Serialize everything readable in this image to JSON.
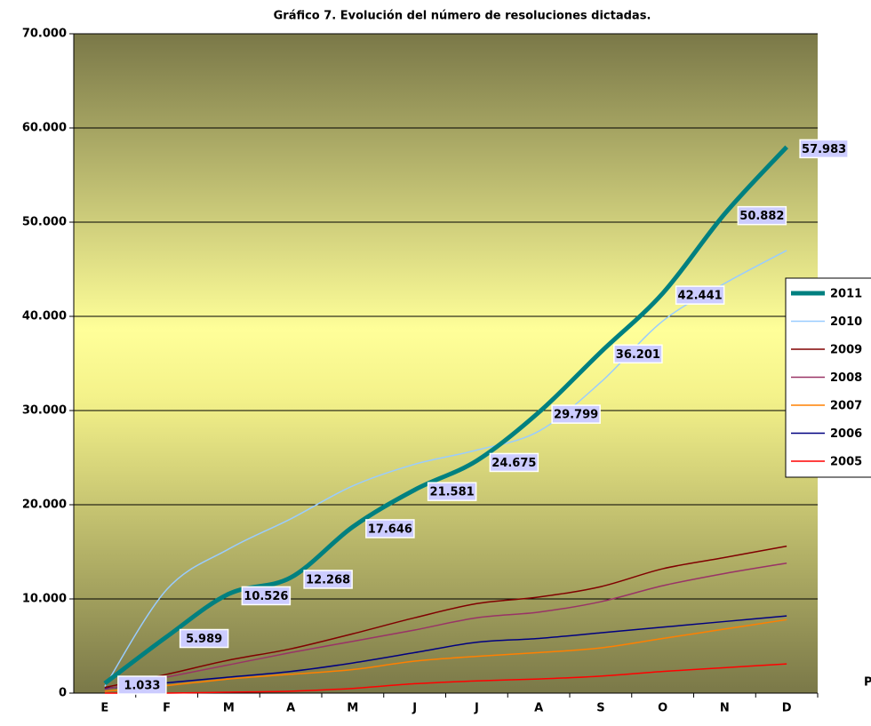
{
  "chart_data": {
    "type": "line",
    "title": "Gráfico 7. Evolución del número de resoluciones dictadas.",
    "categories": [
      "E",
      "F",
      "M",
      "A",
      "M",
      "J",
      "J",
      "A",
      "S",
      "O",
      "N",
      "D"
    ],
    "series": [
      {
        "name": "2011",
        "color": "#008080",
        "values": [
          1033,
          5989,
          10526,
          12268,
          17646,
          21581,
          24675,
          29799,
          36201,
          42441,
          50882,
          57983
        ],
        "value_labels": [
          "1.033",
          "5.989",
          "10.526",
          "12.268",
          "17.646",
          "21.581",
          "24.675",
          "29.799",
          "36.201",
          "42.441",
          "50.882",
          "57.983"
        ]
      },
      {
        "name": "2010",
        "color": "#99ccff",
        "values": [
          700,
          11000,
          15300,
          18500,
          22000,
          24300,
          25800,
          27800,
          33000,
          39500,
          43500,
          47000
        ]
      },
      {
        "name": "2009",
        "color": "#800000",
        "values": [
          600,
          2000,
          3500,
          4700,
          6300,
          8000,
          9500,
          10200,
          11300,
          13200,
          14400,
          15600
        ]
      },
      {
        "name": "2008",
        "color": "#993366",
        "values": [
          400,
          1700,
          3000,
          4300,
          5500,
          6700,
          8000,
          8600,
          9700,
          11400,
          12700,
          13800
        ]
      },
      {
        "name": "2007",
        "color": "#ff8000",
        "values": [
          200,
          800,
          1500,
          2000,
          2500,
          3400,
          3900,
          4300,
          4800,
          5800,
          6800,
          7800
        ]
      },
      {
        "name": "2006",
        "color": "#000080",
        "values": [
          500,
          1100,
          1700,
          2300,
          3200,
          4300,
          5400,
          5800,
          6400,
          7000,
          7600,
          8200
        ]
      },
      {
        "name": "2005",
        "color": "#ff0000",
        "values": [
          0,
          0,
          100,
          200,
          500,
          1000,
          1300,
          1500,
          1800,
          2300,
          2700,
          3100
        ]
      }
    ],
    "ylim": [
      0,
      70000
    ],
    "yticks": [
      0,
      {
        "value": 10000,
        "label": "10.000"
      },
      {
        "value": 20000,
        "label": "20.000"
      },
      {
        "value": 30000,
        "label": "30.000"
      },
      {
        "value": 40000,
        "label": "40.000"
      },
      {
        "value": 50000,
        "label": "50.000"
      },
      {
        "value": 60000,
        "label": "60.000"
      },
      {
        "value": 70000,
        "label": "70.000"
      }
    ],
    "grid": true,
    "legend": "right",
    "annotation": "P"
  }
}
